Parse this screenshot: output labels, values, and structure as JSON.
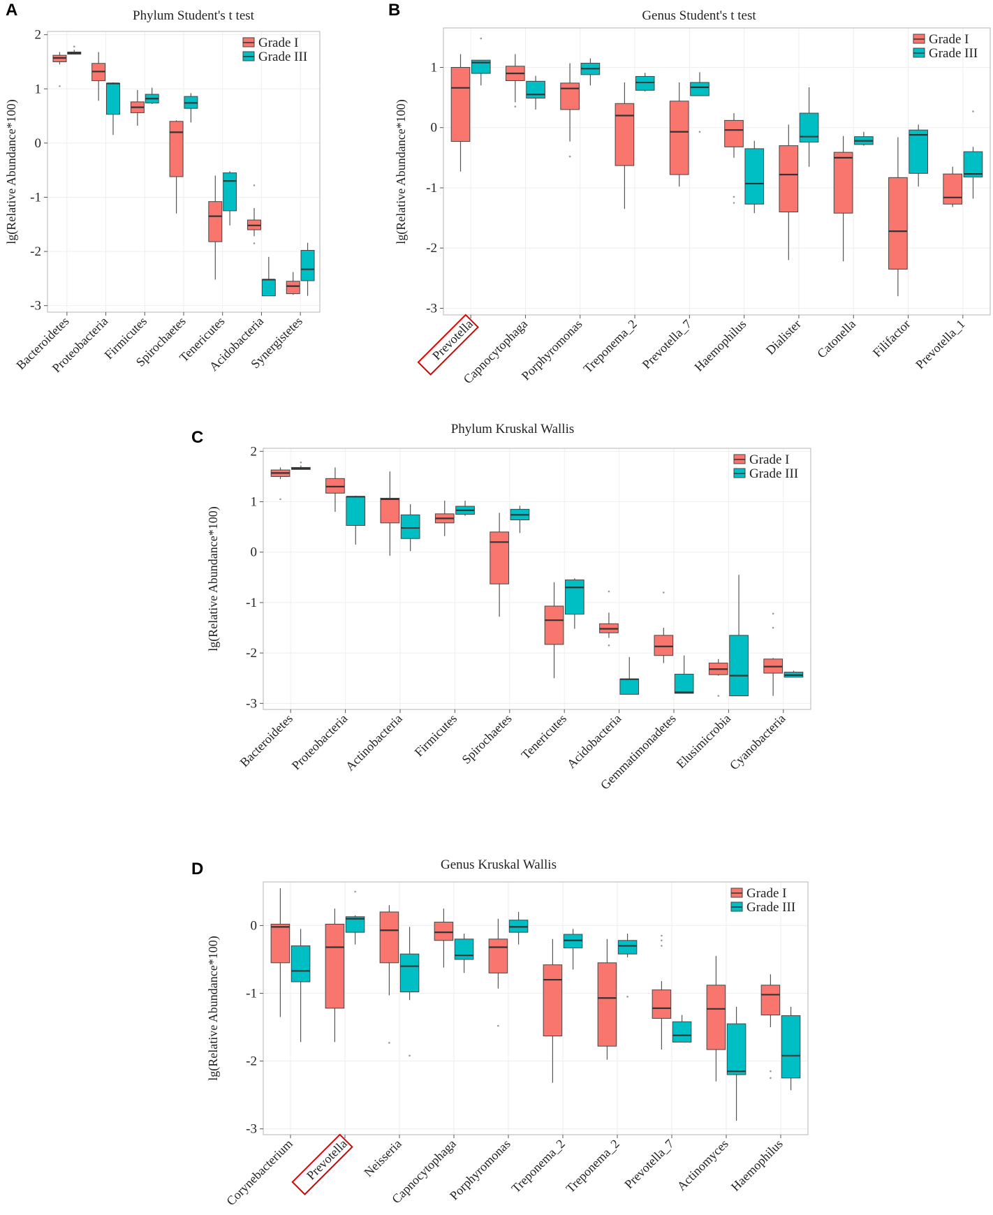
{
  "colors": {
    "grade1": "#F8766D",
    "grade3": "#00BFC4",
    "box_stroke": "#444444",
    "highlight": "#e00000"
  },
  "chart_data": [
    {
      "id": "A",
      "type": "boxplot",
      "panel_label": "A",
      "title": "Phylum Student's t test",
      "ylabel": "lg(Relative Abundance*100)",
      "ylim": [
        -3,
        2
      ],
      "yticks": [
        2,
        1,
        0,
        -1,
        -2,
        -3
      ],
      "legend": [
        "Grade I",
        "Grade III"
      ],
      "legend_position": "top-right",
      "highlight": [],
      "categories": [
        "Bacteroidetes",
        "Proteobacteria",
        "Firmicutes",
        "Spirochaetes",
        "Tenericutes",
        "Acidobacteria",
        "Synergistetes"
      ],
      "series": [
        {
          "name": "Grade I",
          "boxes": [
            {
              "min": 1.45,
              "q1": 1.5,
              "median": 1.57,
              "q3": 1.62,
              "max": 1.68,
              "outliers": [
                1.05
              ]
            },
            {
              "min": 0.78,
              "q1": 1.15,
              "median": 1.32,
              "q3": 1.47,
              "max": 1.68,
              "outliers": []
            },
            {
              "min": 0.32,
              "q1": 0.56,
              "median": 0.66,
              "q3": 0.76,
              "max": 0.98,
              "outliers": []
            },
            {
              "min": -1.3,
              "q1": -0.62,
              "median": 0.2,
              "q3": 0.4,
              "max": 0.42,
              "outliers": []
            },
            {
              "min": -2.52,
              "q1": -1.82,
              "median": -1.35,
              "q3": -1.08,
              "max": -0.6,
              "outliers": []
            },
            {
              "min": -1.72,
              "q1": -1.6,
              "median": -1.52,
              "q3": -1.42,
              "max": -1.2,
              "outliers": [
                -0.78,
                -1.85
              ]
            },
            {
              "min": -2.8,
              "q1": -2.78,
              "median": -2.64,
              "q3": -2.55,
              "max": -2.38,
              "outliers": []
            }
          ]
        },
        {
          "name": "Grade III",
          "boxes": [
            {
              "min": 1.64,
              "q1": 1.64,
              "median": 1.66,
              "q3": 1.68,
              "max": 1.72,
              "outliers": [
                1.78
              ]
            },
            {
              "min": 0.15,
              "q1": 0.53,
              "median": 1.1,
              "q3": 1.1,
              "max": 1.12,
              "outliers": []
            },
            {
              "min": 0.72,
              "q1": 0.74,
              "median": 0.82,
              "q3": 0.9,
              "max": 1.02,
              "outliers": []
            },
            {
              "min": 0.38,
              "q1": 0.64,
              "median": 0.74,
              "q3": 0.86,
              "max": 0.92,
              "outliers": []
            },
            {
              "min": -1.52,
              "q1": -1.25,
              "median": -0.7,
              "q3": -0.55,
              "max": -0.52,
              "outliers": []
            },
            {
              "min": -2.82,
              "q1": -2.82,
              "median": -2.52,
              "q3": -2.52,
              "max": -2.1,
              "outliers": []
            },
            {
              "min": -2.82,
              "q1": -2.54,
              "median": -2.33,
              "q3": -1.98,
              "max": -1.84,
              "outliers": []
            }
          ]
        }
      ]
    },
    {
      "id": "B",
      "type": "boxplot",
      "panel_label": "B",
      "title": "Genus Student's t test",
      "ylabel": "lg(Relative Abundance*100)",
      "ylim": [
        -3,
        1.6
      ],
      "yticks": [
        1,
        0,
        -1,
        -2,
        -3
      ],
      "legend": [
        "Grade I",
        "Grade III"
      ],
      "legend_position": "top-right",
      "highlight": [
        0
      ],
      "categories": [
        "Prevotella",
        "Capnocytophaga",
        "Porphyromonas",
        "Treponema_2",
        "Prevotella_7",
        "Haemophilus",
        "Dialister",
        "Catonella",
        "Filifactor",
        "Prevotella_1"
      ],
      "series": [
        {
          "name": "Grade I",
          "boxes": [
            {
              "min": -0.73,
              "q1": -0.23,
              "median": 0.66,
              "q3": 1.0,
              "max": 1.22,
              "outliers": []
            },
            {
              "min": 0.42,
              "q1": 0.78,
              "median": 0.9,
              "q3": 1.02,
              "max": 1.22,
              "outliers": [
                0.35
              ]
            },
            {
              "min": -0.23,
              "q1": 0.3,
              "median": 0.65,
              "q3": 0.74,
              "max": 1.07,
              "outliers": [
                -0.48
              ]
            },
            {
              "min": -1.35,
              "q1": -0.63,
              "median": 0.2,
              "q3": 0.4,
              "max": 0.75,
              "outliers": []
            },
            {
              "min": -0.98,
              "q1": -0.78,
              "median": -0.07,
              "q3": 0.44,
              "max": 0.75,
              "outliers": []
            },
            {
              "min": -0.5,
              "q1": -0.32,
              "median": -0.04,
              "q3": 0.12,
              "max": 0.24,
              "outliers": [
                -1.15,
                -1.25
              ]
            },
            {
              "min": -2.2,
              "q1": -1.4,
              "median": -0.78,
              "q3": -0.3,
              "max": 0.05,
              "outliers": []
            },
            {
              "min": -2.22,
              "q1": -1.42,
              "median": -0.5,
              "q3": -0.41,
              "max": -0.14,
              "outliers": []
            },
            {
              "min": -2.8,
              "q1": -2.35,
              "median": -1.72,
              "q3": -0.83,
              "max": -0.16,
              "outliers": []
            },
            {
              "min": -1.32,
              "q1": -1.27,
              "median": -1.16,
              "q3": -0.77,
              "max": -0.65,
              "outliers": []
            }
          ]
        },
        {
          "name": "Grade III",
          "boxes": [
            {
              "min": 0.7,
              "q1": 0.9,
              "median": 1.08,
              "q3": 1.12,
              "max": 1.12,
              "outliers": [
                1.48
              ]
            },
            {
              "min": 0.3,
              "q1": 0.49,
              "median": 0.55,
              "q3": 0.77,
              "max": 0.86,
              "outliers": []
            },
            {
              "min": 0.7,
              "q1": 0.88,
              "median": 0.98,
              "q3": 1.07,
              "max": 1.15,
              "outliers": []
            },
            {
              "min": 0.6,
              "q1": 0.62,
              "median": 0.75,
              "q3": 0.85,
              "max": 0.91,
              "outliers": []
            },
            {
              "min": 0.53,
              "q1": 0.53,
              "median": 0.67,
              "q3": 0.75,
              "max": 0.92,
              "outliers": [
                -0.07
              ]
            },
            {
              "min": -1.42,
              "q1": -1.27,
              "median": -0.93,
              "q3": -0.35,
              "max": -0.22,
              "outliers": []
            },
            {
              "min": -0.65,
              "q1": -0.24,
              "median": -0.15,
              "q3": 0.24,
              "max": 0.67,
              "outliers": []
            },
            {
              "min": -0.3,
              "q1": -0.28,
              "median": -0.22,
              "q3": -0.15,
              "max": -0.07,
              "outliers": []
            },
            {
              "min": -0.98,
              "q1": -0.76,
              "median": -0.12,
              "q3": -0.04,
              "max": 0.05,
              "outliers": []
            },
            {
              "min": -1.18,
              "q1": -0.82,
              "median": -0.77,
              "q3": -0.4,
              "max": -0.32,
              "outliers": [
                0.27
              ]
            }
          ]
        }
      ]
    },
    {
      "id": "C",
      "type": "boxplot",
      "panel_label": "C",
      "title": "Phylum Kruskal Wallis",
      "ylabel": "lg(Relative Abundance*100)",
      "ylim": [
        -3,
        2
      ],
      "yticks": [
        2,
        1,
        0,
        -1,
        -2,
        -3
      ],
      "legend": [
        "Grade I",
        "Grade III"
      ],
      "legend_position": "top-right",
      "highlight": [],
      "categories": [
        "Bacteroidetes",
        "Proteobacteria",
        "Actinobacteria",
        "Firmicutes",
        "Spirochaetes",
        "Tenericutes",
        "Acidobacteria",
        "Gemmatimonadetes",
        "Elusimicrobia",
        "Cyanobacteria"
      ],
      "series": [
        {
          "name": "Grade I",
          "boxes": [
            {
              "min": 1.45,
              "q1": 1.5,
              "median": 1.57,
              "q3": 1.63,
              "max": 1.68,
              "outliers": [
                1.05
              ]
            },
            {
              "min": 0.8,
              "q1": 1.17,
              "median": 1.3,
              "q3": 1.46,
              "max": 1.68,
              "outliers": []
            },
            {
              "min": -0.07,
              "q1": 0.58,
              "median": 1.05,
              "q3": 1.07,
              "max": 1.6,
              "outliers": []
            },
            {
              "min": 0.32,
              "q1": 0.58,
              "median": 0.67,
              "q3": 0.76,
              "max": 1.02,
              "outliers": []
            },
            {
              "min": -1.28,
              "q1": -0.63,
              "median": 0.2,
              "q3": 0.4,
              "max": 0.78,
              "outliers": []
            },
            {
              "min": -2.5,
              "q1": -1.83,
              "median": -1.35,
              "q3": -1.07,
              "max": -0.6,
              "outliers": []
            },
            {
              "min": -1.7,
              "q1": -1.6,
              "median": -1.52,
              "q3": -1.42,
              "max": -1.2,
              "outliers": [
                -0.78,
                -1.85
              ]
            },
            {
              "min": -2.2,
              "q1": -2.05,
              "median": -1.87,
              "q3": -1.65,
              "max": -1.5,
              "outliers": [
                -0.8
              ]
            },
            {
              "min": -2.45,
              "q1": -2.43,
              "median": -2.32,
              "q3": -2.2,
              "max": -2.12,
              "outliers": [
                -2.85
              ]
            },
            {
              "min": -2.85,
              "q1": -2.4,
              "median": -2.27,
              "q3": -2.12,
              "max": -2.1,
              "outliers": [
                -1.22,
                -1.5
              ]
            }
          ]
        },
        {
          "name": "Grade III",
          "boxes": [
            {
              "min": 1.64,
              "q1": 1.64,
              "median": 1.66,
              "q3": 1.68,
              "max": 1.72,
              "outliers": [
                1.78
              ]
            },
            {
              "min": 0.15,
              "q1": 0.53,
              "median": 1.1,
              "q3": 1.1,
              "max": 1.12,
              "outliers": []
            },
            {
              "min": 0.02,
              "q1": 0.27,
              "median": 0.48,
              "q3": 0.74,
              "max": 0.95,
              "outliers": []
            },
            {
              "min": 0.72,
              "q1": 0.75,
              "median": 0.83,
              "q3": 0.91,
              "max": 1.02,
              "outliers": []
            },
            {
              "min": 0.38,
              "q1": 0.64,
              "median": 0.74,
              "q3": 0.85,
              "max": 0.92,
              "outliers": []
            },
            {
              "min": -1.52,
              "q1": -1.23,
              "median": -0.7,
              "q3": -0.55,
              "max": -0.52,
              "outliers": []
            },
            {
              "min": -2.82,
              "q1": -2.82,
              "median": -2.52,
              "q3": -2.52,
              "max": -2.08,
              "outliers": []
            },
            {
              "min": -2.8,
              "q1": -2.8,
              "median": -2.78,
              "q3": -2.42,
              "max": -2.05,
              "outliers": []
            },
            {
              "min": -2.85,
              "q1": -2.85,
              "median": -2.45,
              "q3": -1.65,
              "max": -0.45,
              "outliers": []
            },
            {
              "min": -2.48,
              "q1": -2.48,
              "median": -2.44,
              "q3": -2.38,
              "max": -2.35,
              "outliers": []
            }
          ]
        }
      ]
    },
    {
      "id": "D",
      "type": "boxplot",
      "panel_label": "D",
      "title": "Genus Kruskal Wallis",
      "ylabel": "lg(Relative Abundance*100)",
      "ylim": [
        -3,
        0.6
      ],
      "yticks": [
        0,
        -1,
        -2,
        -3
      ],
      "legend": [
        "Grade I",
        "Grade III"
      ],
      "legend_position": "top-right",
      "highlight": [
        1
      ],
      "categories": [
        "Corynebacterium",
        "Prevotella",
        "Neisseria",
        "Capnocytophaga",
        "Porphyromonas",
        "Treponema_2",
        "Treponema_2",
        "Prevotella_7",
        "Actinomyces",
        "Haemophilus"
      ],
      "series": [
        {
          "name": "Grade I",
          "boxes": [
            {
              "min": -1.35,
              "q1": -0.55,
              "median": -0.02,
              "q3": 0.02,
              "max": 0.55,
              "outliers": []
            },
            {
              "min": -1.72,
              "q1": -1.22,
              "median": -0.32,
              "q3": 0.02,
              "max": 0.25,
              "outliers": []
            },
            {
              "min": -1.03,
              "q1": -0.55,
              "median": -0.07,
              "q3": 0.2,
              "max": 0.3,
              "outliers": [
                -1.73
              ]
            },
            {
              "min": -0.62,
              "q1": -0.22,
              "median": -0.1,
              "q3": 0.05,
              "max": 0.25,
              "outliers": []
            },
            {
              "min": -0.93,
              "q1": -0.7,
              "median": -0.32,
              "q3": -0.2,
              "max": 0.1,
              "outliers": [
                -1.48
              ]
            },
            {
              "min": -2.32,
              "q1": -1.63,
              "median": -0.8,
              "q3": -0.58,
              "max": -0.2,
              "outliers": []
            },
            {
              "min": -1.98,
              "q1": -1.78,
              "median": -1.07,
              "q3": -0.55,
              "max": -0.2,
              "outliers": []
            },
            {
              "min": -1.83,
              "q1": -1.37,
              "median": -1.22,
              "q3": -0.95,
              "max": -0.82,
              "outliers": [
                -0.15,
                -0.22,
                -0.3
              ]
            },
            {
              "min": -2.3,
              "q1": -1.83,
              "median": -1.23,
              "q3": -0.88,
              "max": -0.45,
              "outliers": []
            },
            {
              "min": -1.5,
              "q1": -1.32,
              "median": -1.02,
              "q3": -0.88,
              "max": -0.72,
              "outliers": [
                -2.15,
                -2.25
              ]
            }
          ]
        },
        {
          "name": "Grade III",
          "boxes": [
            {
              "min": -1.72,
              "q1": -0.83,
              "median": -0.67,
              "q3": -0.3,
              "max": -0.05,
              "outliers": []
            },
            {
              "min": -0.28,
              "q1": -0.1,
              "median": 0.1,
              "q3": 0.13,
              "max": 0.15,
              "outliers": [
                0.5
              ]
            },
            {
              "min": -1.1,
              "q1": -0.98,
              "median": -0.6,
              "q3": -0.42,
              "max": -0.02,
              "outliers": [
                -1.92
              ]
            },
            {
              "min": -0.7,
              "q1": -0.5,
              "median": -0.44,
              "q3": -0.2,
              "max": -0.12,
              "outliers": []
            },
            {
              "min": -0.28,
              "q1": -0.1,
              "median": -0.02,
              "q3": 0.08,
              "max": 0.2,
              "outliers": []
            },
            {
              "min": -0.65,
              "q1": -0.33,
              "median": -0.22,
              "q3": -0.13,
              "max": -0.05,
              "outliers": []
            },
            {
              "min": -0.47,
              "q1": -0.42,
              "median": -0.3,
              "q3": -0.22,
              "max": -0.12,
              "outliers": [
                -1.05
              ]
            },
            {
              "min": -1.72,
              "q1": -1.72,
              "median": -1.62,
              "q3": -1.42,
              "max": -1.32,
              "outliers": []
            },
            {
              "min": -2.88,
              "q1": -2.2,
              "median": -2.15,
              "q3": -1.45,
              "max": -1.2,
              "outliers": []
            },
            {
              "min": -2.43,
              "q1": -2.25,
              "median": -1.92,
              "q3": -1.33,
              "max": -1.2,
              "outliers": []
            }
          ]
        }
      ]
    }
  ]
}
